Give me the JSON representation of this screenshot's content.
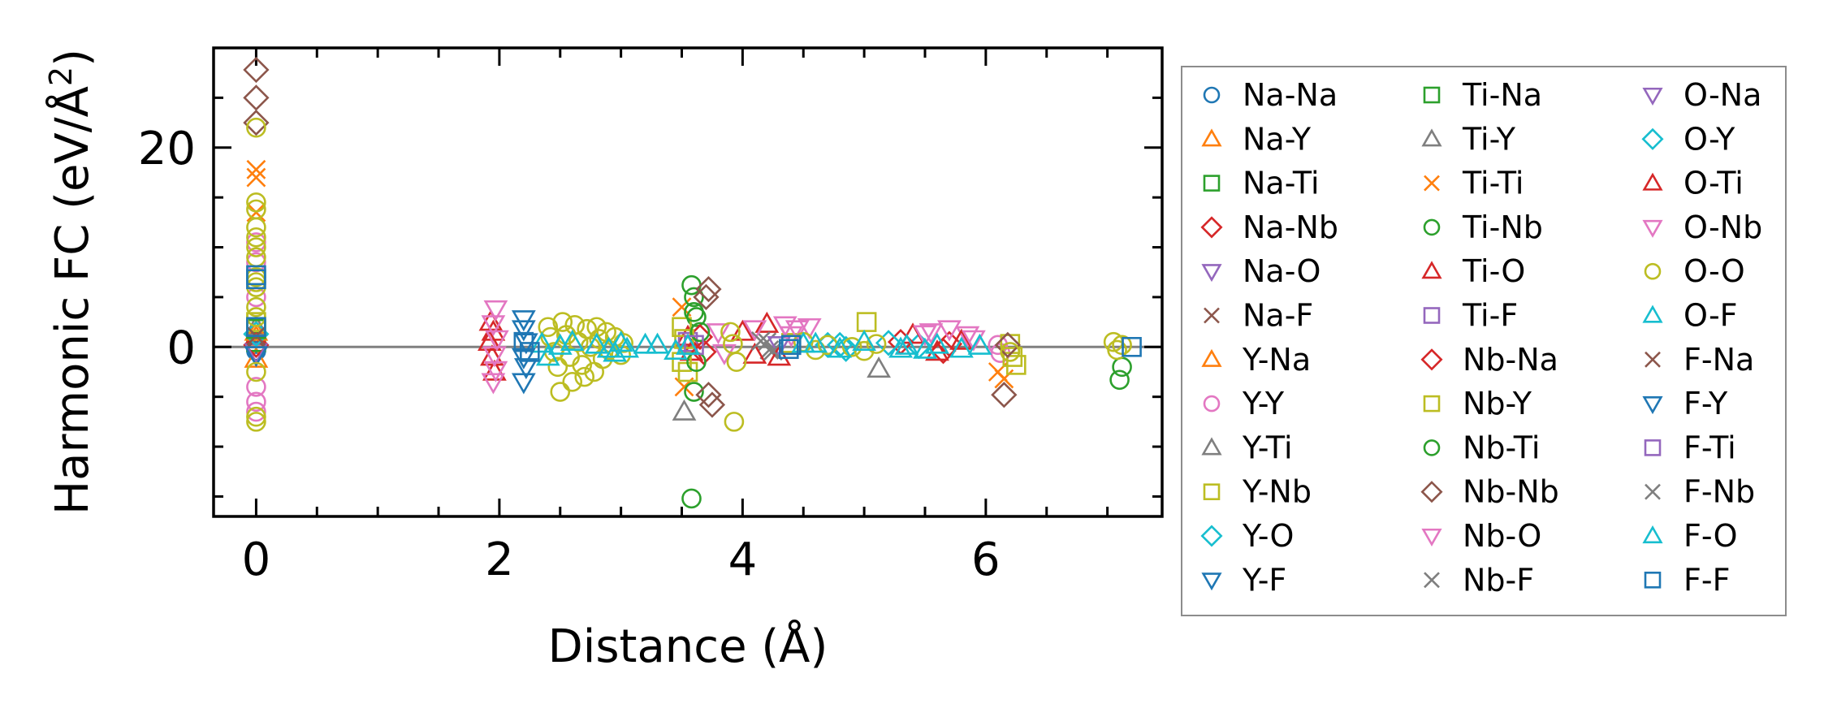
{
  "chart_data": {
    "type": "scatter",
    "title": "",
    "xlabel": "Distance (Å)",
    "ylabel_main": "Harmonic FC (eV/Å",
    "ylabel_sup": "2",
    "ylabel_end": ")",
    "xlim": [
      -0.35,
      7.45
    ],
    "ylim": [
      -17,
      30
    ],
    "xticks": [
      0,
      2,
      4,
      6
    ],
    "xtick_labels": [
      "0",
      "2",
      "4",
      "6"
    ],
    "yticks": [
      0,
      20
    ],
    "ytick_labels": [
      "0",
      "20"
    ],
    "x_minor_step": 0.5,
    "y_minor_step": 5,
    "zero_line": true,
    "grid": false,
    "legend_position": "right-outside",
    "series": [
      {
        "name": "Na-Na",
        "color": "#1f77b4",
        "marker": "o",
        "points": [
          [
            0,
            0.3
          ],
          [
            0,
            -0.4
          ]
        ]
      },
      {
        "name": "Na-Y",
        "color": "#ff7f0e",
        "marker": "^",
        "points": [
          [
            0,
            1.0
          ],
          [
            0,
            -1.2
          ]
        ]
      },
      {
        "name": "Na-Ti",
        "color": "#2ca02c",
        "marker": "s",
        "points": [
          [
            0,
            0.5
          ]
        ]
      },
      {
        "name": "Na-Nb",
        "color": "#d62728",
        "marker": "D",
        "points": [
          [
            0,
            0.2
          ]
        ]
      },
      {
        "name": "Na-O",
        "color": "#9467bd",
        "marker": "v",
        "points": [
          [
            0,
            -0.5
          ]
        ]
      },
      {
        "name": "Na-F",
        "color": "#8c564b",
        "marker": "x",
        "points": [
          [
            0,
            0.8
          ]
        ]
      },
      {
        "name": "Y-Na",
        "color": "#ff7f0e",
        "marker": "^",
        "points": [
          [
            0,
            1.5
          ]
        ]
      },
      {
        "name": "Y-Y",
        "color": "#e377c2",
        "marker": "o",
        "points": [
          [
            0,
            10.5
          ],
          [
            0,
            8.5
          ],
          [
            0,
            5.0
          ],
          [
            0,
            -4.0
          ],
          [
            0,
            -5.5
          ],
          [
            0,
            -6.5
          ],
          [
            6.1,
            0.2
          ],
          [
            6.12,
            -0.6
          ]
        ]
      },
      {
        "name": "Y-Ti",
        "color": "#7f7f7f",
        "marker": "^",
        "points": [
          [
            0,
            2.0
          ]
        ]
      },
      {
        "name": "Y-Nb",
        "color": "#bcbd22",
        "marker": "s",
        "points": [
          [
            0,
            2.5
          ]
        ]
      },
      {
        "name": "Y-O",
        "color": "#17becf",
        "marker": "D",
        "points": [
          [
            0,
            1.3
          ],
          [
            4.7,
            0.2
          ],
          [
            4.85,
            -0.2
          ],
          [
            5.45,
            0.1
          ]
        ]
      },
      {
        "name": "Y-F",
        "color": "#1f77b4",
        "marker": "v",
        "points": [
          [
            0,
            -0.8
          ]
        ]
      },
      {
        "name": "Ti-Na",
        "color": "#2ca02c",
        "marker": "s",
        "points": [
          [
            0,
            1.8
          ]
        ]
      },
      {
        "name": "Ti-Y",
        "color": "#7f7f7f",
        "marker": "^",
        "points": [
          [
            3.52,
            -6.5
          ],
          [
            5.12,
            -2.2
          ]
        ]
      },
      {
        "name": "Ti-Ti",
        "color": "#ff7f0e",
        "marker": "x",
        "points": [
          [
            0,
            17.8
          ],
          [
            0,
            17.0
          ],
          [
            0,
            13.5
          ],
          [
            3.5,
            4.0
          ],
          [
            3.52,
            -4.0
          ],
          [
            6.1,
            -2.5
          ],
          [
            6.15,
            -3.2
          ]
        ]
      },
      {
        "name": "Ti-Nb",
        "color": "#2ca02c",
        "marker": "o",
        "points": [
          [
            3.58,
            6.2
          ],
          [
            3.6,
            5.0
          ],
          [
            3.62,
            3.0
          ],
          [
            3.6,
            -4.5
          ],
          [
            3.58,
            -15.2
          ],
          [
            7.12,
            -2.0
          ],
          [
            7.1,
            -3.3
          ]
        ]
      },
      {
        "name": "Ti-O",
        "color": "#d62728",
        "marker": "^",
        "points": [
          [
            1.93,
            2.5
          ],
          [
            1.95,
            1.5
          ],
          [
            1.92,
            0.5
          ],
          [
            1.94,
            -1.0
          ],
          [
            1.96,
            -2.5
          ],
          [
            3.55,
            1.0
          ],
          [
            3.58,
            -0.5
          ]
        ]
      },
      {
        "name": "Ti-F",
        "color": "#9467bd",
        "marker": "s",
        "points": [
          [
            3.55,
            0.5
          ]
        ]
      },
      {
        "name": "Nb-Na",
        "color": "#d62728",
        "marker": "D",
        "points": [
          [
            3.65,
            1.0
          ],
          [
            3.68,
            -0.5
          ],
          [
            5.7,
            0.3
          ],
          [
            5.65,
            -0.4
          ],
          [
            5.3,
            0.5
          ]
        ]
      },
      {
        "name": "Nb-Y",
        "color": "#bcbd22",
        "marker": "s",
        "points": [
          [
            3.5,
            2.0
          ],
          [
            3.52,
            0.8
          ],
          [
            3.5,
            -1.5
          ],
          [
            3.55,
            -2.5
          ],
          [
            4.4,
            0.4
          ],
          [
            5.02,
            2.5
          ],
          [
            6.2,
            0.3
          ],
          [
            6.22,
            -1.0
          ],
          [
            6.25,
            -1.8
          ]
        ]
      },
      {
        "name": "Nb-Ti",
        "color": "#2ca02c",
        "marker": "o",
        "points": [
          [
            3.6,
            3.5
          ],
          [
            3.65,
            1.5
          ],
          [
            3.62,
            -1.5
          ]
        ]
      },
      {
        "name": "Nb-Nb",
        "color": "#8c564b",
        "marker": "D",
        "points": [
          [
            0,
            27.8
          ],
          [
            0,
            25.0
          ],
          [
            0,
            22.5
          ],
          [
            3.72,
            5.8
          ],
          [
            3.7,
            5.0
          ],
          [
            3.72,
            -4.8
          ],
          [
            3.75,
            -5.8
          ],
          [
            6.15,
            -4.8
          ],
          [
            6.18,
            0.2
          ]
        ]
      },
      {
        "name": "Nb-O",
        "color": "#e377c2",
        "marker": "v",
        "points": [
          [
            1.97,
            3.8
          ],
          [
            1.95,
            2.3
          ],
          [
            1.98,
            0.8
          ],
          [
            1.96,
            -0.8
          ],
          [
            1.97,
            -2.3
          ],
          [
            1.95,
            -3.5
          ],
          [
            3.8,
            1.5
          ],
          [
            3.85,
            -0.6
          ],
          [
            4.35,
            2.2
          ],
          [
            4.45,
            1.8
          ],
          [
            4.55,
            2.0
          ],
          [
            5.55,
            1.5
          ],
          [
            5.7,
            1.8
          ],
          [
            5.85,
            1.2
          ]
        ]
      },
      {
        "name": "Nb-F",
        "color": "#7f7f7f",
        "marker": "x",
        "points": [
          [
            4.2,
            0.5
          ],
          [
            4.22,
            -0.3
          ]
        ]
      },
      {
        "name": "O-Na",
        "color": "#9467bd",
        "marker": "v",
        "points": [
          [
            4.3,
            0.2
          ]
        ]
      },
      {
        "name": "O-Y",
        "color": "#17becf",
        "marker": "D",
        "points": [
          [
            4.8,
            0.2
          ],
          [
            5.2,
            0.4
          ]
        ]
      },
      {
        "name": "O-Ti",
        "color": "#d62728",
        "marker": "^",
        "points": [
          [
            4.0,
            1.5
          ],
          [
            4.1,
            -0.8
          ],
          [
            4.2,
            2.3
          ],
          [
            4.3,
            -1.0
          ],
          [
            5.4,
            1.2
          ],
          [
            5.6,
            -0.5
          ],
          [
            5.8,
            0.6
          ]
        ]
      },
      {
        "name": "O-Nb",
        "color": "#e377c2",
        "marker": "v",
        "points": [
          [
            4.1,
            1.8
          ],
          [
            4.4,
            1.2
          ],
          [
            5.5,
            1.3
          ],
          [
            5.9,
            0.8
          ]
        ]
      },
      {
        "name": "O-O",
        "color": "#bcbd22",
        "marker": "o",
        "points": [
          [
            0,
            22.0
          ],
          [
            0,
            14.5
          ],
          [
            0,
            13.8
          ],
          [
            0,
            12.0
          ],
          [
            0,
            11.0
          ],
          [
            0,
            10.0
          ],
          [
            0,
            9.0
          ],
          [
            0,
            7.0
          ],
          [
            0,
            6.5
          ],
          [
            0,
            6.0
          ],
          [
            0,
            4.0
          ],
          [
            0,
            3.0
          ],
          [
            0,
            -2.5
          ],
          [
            0,
            -7.0
          ],
          [
            0,
            -7.5
          ],
          [
            2.4,
            2.0
          ],
          [
            2.42,
            1.0
          ],
          [
            2.45,
            -0.5
          ],
          [
            2.48,
            -2.0
          ],
          [
            2.5,
            -4.5
          ],
          [
            2.52,
            2.5
          ],
          [
            2.55,
            1.2
          ],
          [
            2.58,
            -1.0
          ],
          [
            2.6,
            -3.5
          ],
          [
            2.62,
            2.2
          ],
          [
            2.65,
            0.5
          ],
          [
            2.68,
            -1.8
          ],
          [
            2.7,
            -3.0
          ],
          [
            2.72,
            1.8
          ],
          [
            2.75,
            0.0
          ],
          [
            2.78,
            -2.5
          ],
          [
            2.8,
            2.0
          ],
          [
            2.82,
            0.8
          ],
          [
            2.85,
            -1.2
          ],
          [
            2.88,
            1.5
          ],
          [
            2.9,
            -0.3
          ],
          [
            2.95,
            1.0
          ],
          [
            3.0,
            -0.8
          ],
          [
            3.02,
            0.4
          ],
          [
            3.9,
            1.5
          ],
          [
            3.92,
            0.3
          ],
          [
            3.95,
            -1.5
          ],
          [
            3.93,
            -7.5
          ],
          [
            4.5,
            0.5
          ],
          [
            4.6,
            -0.3
          ],
          [
            4.7,
            0.2
          ],
          [
            4.9,
            0.0
          ],
          [
            5.0,
            -0.4
          ],
          [
            5.1,
            0.3
          ],
          [
            6.2,
            -0.5
          ],
          [
            7.05,
            0.5
          ],
          [
            7.08,
            -0.3
          ],
          [
            7.12,
            0.2
          ]
        ]
      },
      {
        "name": "O-F",
        "color": "#17becf",
        "marker": "^",
        "points": [
          [
            2.35,
            0.3
          ],
          [
            2.4,
            -1.0
          ],
          [
            2.6,
            0.5
          ],
          [
            2.8,
            0.2
          ],
          [
            2.95,
            -0.6
          ],
          [
            3.0,
            0.4
          ],
          [
            3.05,
            -0.2
          ],
          [
            3.3,
            0.2
          ],
          [
            3.45,
            -0.4
          ],
          [
            4.5,
            0.3
          ],
          [
            4.8,
            -0.2
          ],
          [
            5.0,
            0.5
          ],
          [
            5.35,
            0.1
          ],
          [
            5.5,
            -0.3
          ],
          [
            5.8,
            -0.2
          ],
          [
            5.95,
            0.1
          ]
        ]
      },
      {
        "name": "F-Na",
        "color": "#8c564b",
        "marker": "x",
        "points": [
          [
            0,
            1.1
          ]
        ]
      },
      {
        "name": "F-Y",
        "color": "#1f77b4",
        "marker": "v",
        "points": [
          [
            2.2,
            2.8
          ],
          [
            2.2,
            1.8
          ],
          [
            2.22,
            0.5
          ],
          [
            2.2,
            -1.0
          ],
          [
            2.22,
            -2.0
          ],
          [
            2.2,
            -3.5
          ]
        ]
      },
      {
        "name": "F-Ti",
        "color": "#9467bd",
        "marker": "s",
        "points": [
          [
            3.6,
            0.2
          ]
        ]
      },
      {
        "name": "F-Nb",
        "color": "#7f7f7f",
        "marker": "x",
        "points": [
          [
            4.15,
            0.6
          ],
          [
            4.25,
            -0.4
          ]
        ]
      },
      {
        "name": "F-O",
        "color": "#17becf",
        "marker": "^",
        "points": [
          [
            2.5,
            0.1
          ],
          [
            2.9,
            -0.2
          ],
          [
            3.2,
            0.2
          ],
          [
            3.55,
            0.1
          ],
          [
            4.6,
            0.3
          ],
          [
            5.3,
            -0.2
          ],
          [
            5.6,
            0.2
          ]
        ]
      },
      {
        "name": "F-F",
        "color": "#1f77b4",
        "marker": "s",
        "points": [
          [
            0,
            7.2
          ],
          [
            0,
            6.8
          ],
          [
            0,
            2.0
          ],
          [
            2.2,
            0.5
          ],
          [
            2.25,
            -0.5
          ],
          [
            4.4,
            0.2
          ],
          [
            4.38,
            -0.2
          ],
          [
            7.2,
            0.0
          ]
        ]
      }
    ]
  }
}
